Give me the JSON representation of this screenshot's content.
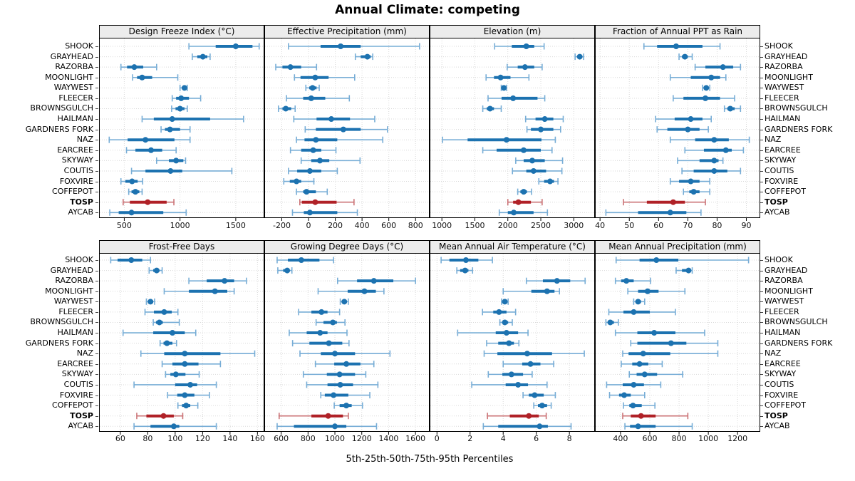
{
  "title": "Annual Climate: competing",
  "caption": "5th-25th-50th-75th-95th Percentiles",
  "sites": [
    "SHOOK",
    "GRAYHEAD",
    "RAZORBA",
    "MOONLIGHT",
    "WAYWEST",
    "FLEECER",
    "BROWNSGULCH",
    "HAILMAN",
    "GARDNERS FORK",
    "NAZ",
    "EARCREE",
    "SKYWAY",
    "COUTIS",
    "FOXVIRE",
    "COFFEPOT",
    "TOSP",
    "AYCAB"
  ],
  "highlight_site": "TOSP",
  "colors": {
    "series": "#1c72b0",
    "series_light": "#77add6",
    "highlight": "#b02127",
    "highlight_light": "#cb7376",
    "grid": "#d9d9d9",
    "strip_bg": "#ececec",
    "border": "#000000"
  },
  "chart_data": {
    "type": "dotplot",
    "note": "each site row shows 5th-25th-50th-75th-95th percentile whisker/band/median-dot",
    "percentiles": [
      5,
      25,
      50,
      75,
      95
    ],
    "panels": [
      {
        "title": "Design Freeze Index (°C)",
        "row": 0,
        "col": 0,
        "ticks": [
          500,
          1000,
          1500
        ],
        "xlim": [
          280,
          1750
        ],
        "values": [
          [
            1080,
            1320,
            1500,
            1650,
            1710
          ],
          [
            1110,
            1155,
            1205,
            1245,
            1270
          ],
          [
            470,
            525,
            590,
            670,
            790
          ],
          [
            575,
            615,
            660,
            750,
            980
          ],
          [
            1000,
            1020,
            1040,
            1055,
            1065
          ],
          [
            930,
            965,
            1010,
            1080,
            1185
          ],
          [
            925,
            960,
            1000,
            1040,
            1065
          ],
          [
            660,
            765,
            930,
            1270,
            1570
          ],
          [
            830,
            865,
            910,
            1000,
            1090
          ],
          [
            365,
            530,
            690,
            950,
            1090
          ],
          [
            520,
            600,
            740,
            840,
            965
          ],
          [
            790,
            900,
            965,
            1030,
            1050
          ],
          [
            565,
            690,
            915,
            1020,
            1465
          ],
          [
            470,
            510,
            570,
            620,
            665
          ],
          [
            540,
            565,
            600,
            635,
            660
          ],
          [
            490,
            550,
            710,
            880,
            945
          ],
          [
            370,
            450,
            565,
            850,
            1055
          ]
        ]
      },
      {
        "title": "Effective Precipitation (mm)",
        "row": 0,
        "col": 1,
        "ticks": [
          -200,
          0,
          200,
          400,
          600,
          800
        ],
        "xlim": [
          -325,
          900
        ],
        "values": [
          [
            -150,
            90,
            240,
            390,
            830
          ],
          [
            350,
            390,
            440,
            465,
            480
          ],
          [
            -245,
            -195,
            -135,
            -55,
            60
          ],
          [
            -105,
            -60,
            50,
            150,
            345
          ],
          [
            -20,
            5,
            30,
            60,
            80
          ],
          [
            -165,
            -40,
            20,
            125,
            305
          ],
          [
            -225,
            -195,
            -170,
            -130,
            -100
          ],
          [
            -110,
            60,
            170,
            310,
            495
          ],
          [
            -25,
            55,
            260,
            390,
            590
          ],
          [
            -90,
            -30,
            55,
            215,
            555
          ],
          [
            -135,
            -55,
            35,
            95,
            205
          ],
          [
            -55,
            20,
            85,
            155,
            385
          ],
          [
            -150,
            -85,
            10,
            95,
            215
          ],
          [
            -185,
            -140,
            -90,
            -55,
            40
          ],
          [
            -90,
            -40,
            -15,
            55,
            140
          ],
          [
            -65,
            -50,
            50,
            210,
            340
          ],
          [
            -120,
            -35,
            10,
            215,
            365
          ]
        ]
      },
      {
        "title": "Elevation (m)",
        "row": 0,
        "col": 2,
        "ticks": [
          1000,
          1500,
          2000,
          2500,
          3000
        ],
        "xlim": [
          825,
          3310
        ],
        "values": [
          [
            1800,
            2060,
            2280,
            2400,
            2550
          ],
          [
            3020,
            3060,
            3090,
            3120,
            3150
          ],
          [
            1990,
            2150,
            2260,
            2400,
            2520
          ],
          [
            1670,
            1790,
            1890,
            2040,
            2320
          ],
          [
            1900,
            1920,
            1940,
            1960,
            1980
          ],
          [
            1700,
            1905,
            2080,
            2450,
            2560
          ],
          [
            1620,
            1680,
            1730,
            1790,
            1900
          ],
          [
            2270,
            2420,
            2560,
            2690,
            2840
          ],
          [
            2290,
            2350,
            2500,
            2690,
            2800
          ],
          [
            1010,
            1390,
            1980,
            2510,
            2720
          ],
          [
            1620,
            1830,
            2240,
            2500,
            2670
          ],
          [
            2120,
            2240,
            2370,
            2560,
            2830
          ],
          [
            2070,
            2280,
            2390,
            2580,
            2820
          ],
          [
            2470,
            2550,
            2640,
            2700,
            2760
          ],
          [
            2150,
            2190,
            2240,
            2290,
            2360
          ],
          [
            2000,
            2080,
            2160,
            2350,
            2520
          ],
          [
            1870,
            2000,
            2090,
            2390,
            2600
          ]
        ]
      },
      {
        "title": "Fraction of Annual PPT as Rain",
        "row": 0,
        "col": 3,
        "ticks": [
          40,
          50,
          60,
          70,
          80,
          90
        ],
        "xlim": [
          38.5,
          94.5
        ],
        "values": [
          [
            55,
            59.5,
            66,
            75,
            81
          ],
          [
            67,
            68,
            69,
            70,
            71.5
          ],
          [
            72.5,
            76,
            82,
            85.5,
            88
          ],
          [
            64,
            71,
            78,
            81,
            83
          ],
          [
            75,
            75.7,
            76.3,
            77,
            77.5
          ],
          [
            65,
            68.5,
            76,
            81,
            86
          ],
          [
            82.5,
            83.5,
            84.5,
            86,
            88
          ],
          [
            59,
            65.5,
            71,
            75,
            78
          ],
          [
            59.5,
            63,
            70,
            74,
            77
          ],
          [
            64,
            72.5,
            79,
            84,
            91
          ],
          [
            69,
            75.5,
            83,
            85,
            89
          ],
          [
            66.5,
            74,
            79,
            80.5,
            82
          ],
          [
            68,
            72,
            79,
            83.5,
            88
          ],
          [
            64,
            67,
            71,
            74,
            77.5
          ],
          [
            68.5,
            70.5,
            72,
            74,
            77.5
          ],
          [
            48,
            56,
            65,
            69,
            76
          ],
          [
            42,
            53,
            64,
            69.5,
            74.5
          ]
        ]
      },
      {
        "title": "Frost-Free Days",
        "row": 1,
        "col": 0,
        "ticks": [
          60,
          80,
          100,
          120,
          140,
          160
        ],
        "xlim": [
          45,
          164.5
        ],
        "values": [
          [
            53,
            58,
            68,
            76,
            82
          ],
          [
            81,
            84,
            86.5,
            88.5,
            90.5
          ],
          [
            110,
            123,
            136,
            143,
            152
          ],
          [
            92,
            110,
            129,
            138,
            143
          ],
          [
            79,
            80.5,
            82,
            83.5,
            85
          ],
          [
            78,
            84.5,
            92,
            97.5,
            102
          ],
          [
            84,
            86,
            88.5,
            91,
            103
          ],
          [
            62,
            84,
            98,
            107,
            115
          ],
          [
            89,
            91.5,
            94,
            98,
            101
          ],
          [
            75,
            92,
            107,
            133,
            158
          ],
          [
            90.5,
            98,
            107,
            117,
            133
          ],
          [
            93,
            96.5,
            100.5,
            107.5,
            117.5
          ],
          [
            70,
            100,
            111,
            116,
            130
          ],
          [
            94.5,
            101.5,
            107,
            114,
            125
          ],
          [
            102,
            105,
            108,
            111,
            116.5
          ],
          [
            72,
            79,
            91.5,
            99,
            105.5
          ],
          [
            70,
            82,
            99,
            103,
            130
          ]
        ]
      },
      {
        "title": "Growing Degree Days (°C)",
        "row": 1,
        "col": 1,
        "ticks": [
          600,
          800,
          1000,
          1200,
          1400,
          1600
        ],
        "xlim": [
          480,
          1700
        ],
        "values": [
          [
            570,
            650,
            750,
            885,
            990
          ],
          [
            575,
            615,
            645,
            660,
            680
          ],
          [
            1020,
            1165,
            1290,
            1435,
            1600
          ],
          [
            875,
            1095,
            1220,
            1305,
            1365
          ],
          [
            1040,
            1055,
            1070,
            1085,
            1100
          ],
          [
            730,
            825,
            900,
            945,
            1035
          ],
          [
            860,
            915,
            985,
            1015,
            1075
          ],
          [
            660,
            790,
            890,
            945,
            1090
          ],
          [
            685,
            810,
            955,
            1055,
            1105
          ],
          [
            740,
            895,
            1000,
            1150,
            1410
          ],
          [
            855,
            995,
            1085,
            1190,
            1290
          ],
          [
            765,
            940,
            1035,
            1150,
            1230
          ],
          [
            790,
            945,
            1040,
            1135,
            1320
          ],
          [
            895,
            925,
            990,
            1100,
            1260
          ],
          [
            995,
            1035,
            1085,
            1125,
            1205
          ],
          [
            585,
            825,
            950,
            1060,
            1100
          ],
          [
            570,
            695,
            1000,
            1085,
            1310
          ]
        ]
      },
      {
        "title": "Mean Annual Air Temperature (°C)",
        "row": 1,
        "col": 2,
        "ticks": [
          0,
          2,
          4,
          6,
          8
        ],
        "xlim": [
          -0.4,
          9.5
        ],
        "values": [
          [
            0.25,
            0.75,
            1.75,
            2.5,
            3.35
          ],
          [
            1.2,
            1.4,
            1.7,
            1.9,
            2.15
          ],
          [
            5.4,
            6.4,
            7.25,
            8.05,
            8.95
          ],
          [
            4.0,
            5.7,
            6.65,
            7.1,
            7.4
          ],
          [
            3.9,
            4.0,
            4.1,
            4.2,
            4.3
          ],
          [
            2.75,
            3.4,
            3.75,
            4.2,
            4.75
          ],
          [
            3.8,
            3.95,
            4.1,
            4.3,
            4.55
          ],
          [
            1.25,
            3.55,
            4.2,
            4.9,
            5.5
          ],
          [
            3.0,
            3.7,
            4.35,
            4.65,
            4.95
          ],
          [
            2.85,
            3.65,
            5.45,
            6.95,
            8.9
          ],
          [
            4.0,
            5.15,
            5.65,
            6.25,
            7.05
          ],
          [
            3.1,
            3.95,
            4.5,
            5.2,
            5.75
          ],
          [
            2.1,
            4.15,
            4.9,
            5.5,
            6.65
          ],
          [
            5.2,
            5.55,
            5.9,
            6.45,
            7.15
          ],
          [
            5.85,
            6.1,
            6.35,
            6.65,
            6.9
          ],
          [
            3.05,
            4.4,
            5.55,
            6.15,
            6.6
          ],
          [
            2.8,
            3.7,
            6.2,
            6.7,
            8.1
          ]
        ]
      },
      {
        "title": "Mean Annual Precipitation (mm)",
        "row": 1,
        "col": 3,
        "ticks": [
          400,
          600,
          800,
          1000,
          1200
        ],
        "xlim": [
          230,
          1350
        ],
        "values": [
          [
            370,
            530,
            645,
            795,
            1275
          ],
          [
            780,
            820,
            865,
            880,
            890
          ],
          [
            365,
            405,
            440,
            490,
            605
          ],
          [
            450,
            520,
            585,
            660,
            840
          ],
          [
            490,
            505,
            520,
            540,
            565
          ],
          [
            320,
            420,
            490,
            600,
            775
          ],
          [
            300,
            315,
            330,
            355,
            385
          ],
          [
            365,
            515,
            630,
            775,
            975
          ],
          [
            470,
            515,
            745,
            850,
            1065
          ],
          [
            415,
            455,
            555,
            740,
            1065
          ],
          [
            405,
            480,
            530,
            590,
            685
          ],
          [
            460,
            510,
            565,
            650,
            825
          ],
          [
            305,
            415,
            490,
            560,
            675
          ],
          [
            325,
            390,
            425,
            470,
            565
          ],
          [
            420,
            460,
            485,
            545,
            635
          ],
          [
            415,
            470,
            540,
            640,
            860
          ],
          [
            430,
            465,
            520,
            640,
            890
          ]
        ]
      }
    ]
  }
}
